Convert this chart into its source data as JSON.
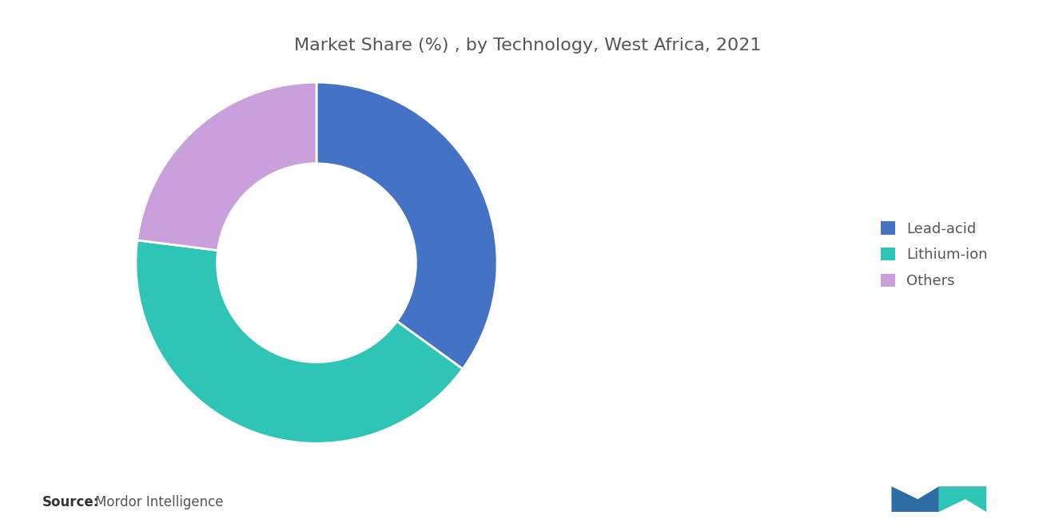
{
  "title": "Market Share (%) , by Technology, West Africa, 2021",
  "title_fontsize": 16,
  "title_color": "#555555",
  "segments": [
    {
      "label": "Lead-acid",
      "value": 35,
      "color": "#4472C4"
    },
    {
      "label": "Lithium-ion",
      "value": 42,
      "color": "#2EC4B6"
    },
    {
      "label": "Others",
      "value": 23,
      "color": "#C9A0DC"
    }
  ],
  "legend_fontsize": 13,
  "legend_text_color": "#555555",
  "source_text": "Source:",
  "source_detail": "  Mordor Intelligence",
  "source_fontsize": 12,
  "background_color": "#ffffff",
  "donut_width": 0.45,
  "start_angle": 90
}
